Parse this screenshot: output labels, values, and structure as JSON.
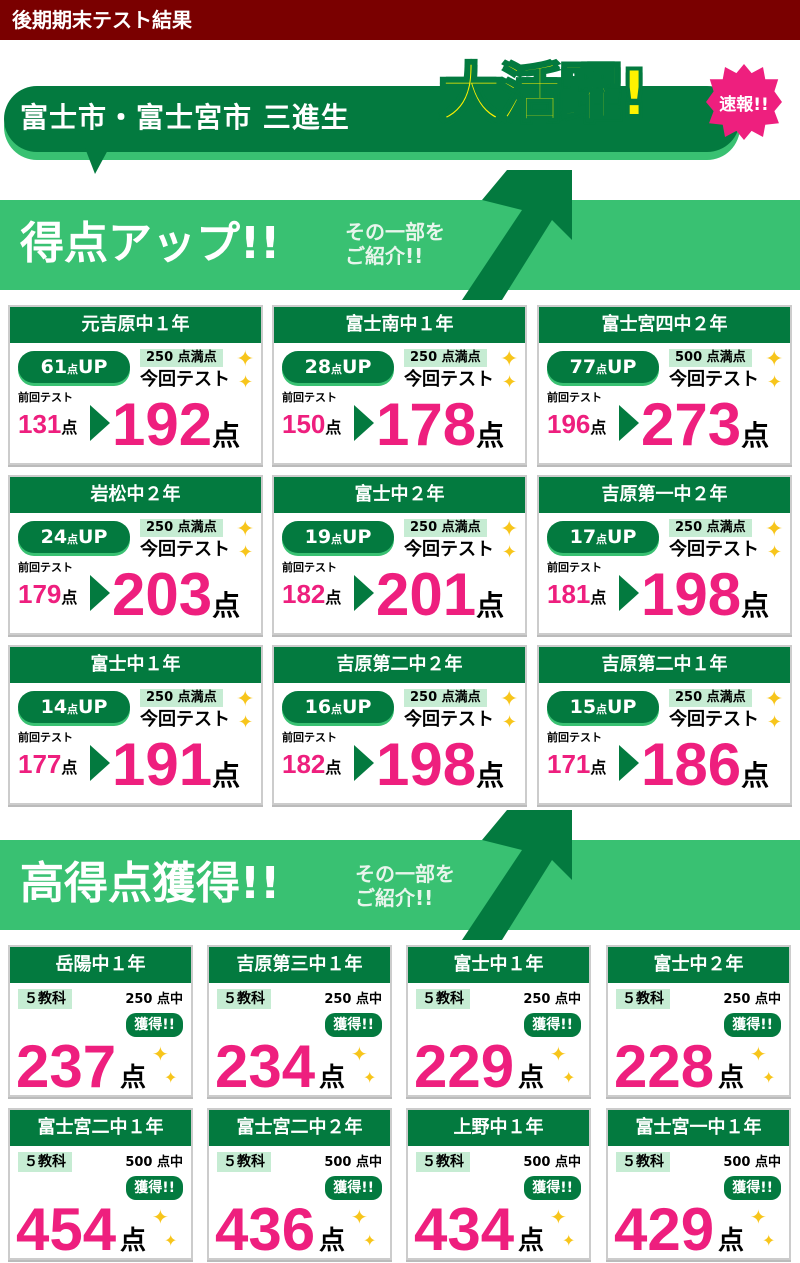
{
  "header": {
    "title": "後期期末テスト結果"
  },
  "banner": {
    "text": "富士市・富士宮市 三進生",
    "headline": "大活躍!",
    "badge": "速報!!"
  },
  "section_up": {
    "title": "得点アップ!!",
    "sub1": "その一部を",
    "sub2": "ご紹介!!"
  },
  "up_cards": [
    {
      "school": "元吉原中１年",
      "up": "61",
      "full": "250 点満点",
      "prev": "131",
      "now": "192"
    },
    {
      "school": "富士南中１年",
      "up": "28",
      "full": "250 点満点",
      "prev": "150",
      "now": "178"
    },
    {
      "school": "富士宮四中２年",
      "up": "77",
      "full": "500 点満点",
      "prev": "196",
      "now": "273"
    },
    {
      "school": "岩松中２年",
      "up": "24",
      "full": "250 点満点",
      "prev": "179",
      "now": "203"
    },
    {
      "school": "富士中２年",
      "up": "19",
      "full": "250 点満点",
      "prev": "182",
      "now": "201"
    },
    {
      "school": "吉原第一中２年",
      "up": "17",
      "full": "250 点満点",
      "prev": "181",
      "now": "198"
    },
    {
      "school": "富士中１年",
      "up": "14",
      "full": "250 点満点",
      "prev": "177",
      "now": "191"
    },
    {
      "school": "吉原第二中２年",
      "up": "16",
      "full": "250 点満点",
      "prev": "182",
      "now": "198"
    },
    {
      "school": "吉原第二中１年",
      "up": "15",
      "full": "250 点満点",
      "prev": "171",
      "now": "186"
    }
  ],
  "up_labels": {
    "up_unit": "点",
    "up_suffix": "UP",
    "now_label": "今回テスト",
    "prev_label": "前回テスト",
    "point": "点"
  },
  "section_high": {
    "title": "高得点獲得!!",
    "sub1": "その一部を",
    "sub2": "ご紹介!!"
  },
  "high_cards": [
    {
      "school": "岳陽中１年",
      "outof": "250 点中",
      "score": "237"
    },
    {
      "school": "吉原第三中１年",
      "outof": "250 点中",
      "score": "234"
    },
    {
      "school": "富士中１年",
      "outof": "250 点中",
      "score": "229"
    },
    {
      "school": "富士中２年",
      "outof": "250 点中",
      "score": "228"
    },
    {
      "school": "富士宮二中１年",
      "outof": "500 点中",
      "score": "454"
    },
    {
      "school": "富士宮二中２年",
      "outof": "500 点中",
      "score": "436"
    },
    {
      "school": "上野中１年",
      "outof": "500 点中",
      "score": "434"
    },
    {
      "school": "富士宮一中１年",
      "outof": "500 点中",
      "score": "429"
    }
  ],
  "high_labels": {
    "subjects": "５教科",
    "get": "獲得!!",
    "point": "点"
  },
  "colors": {
    "dark_red": "#7a0000",
    "green": "#037a3f",
    "light_green": "#39c172",
    "pink": "#ee1f7e",
    "yellow": "#fff200"
  }
}
